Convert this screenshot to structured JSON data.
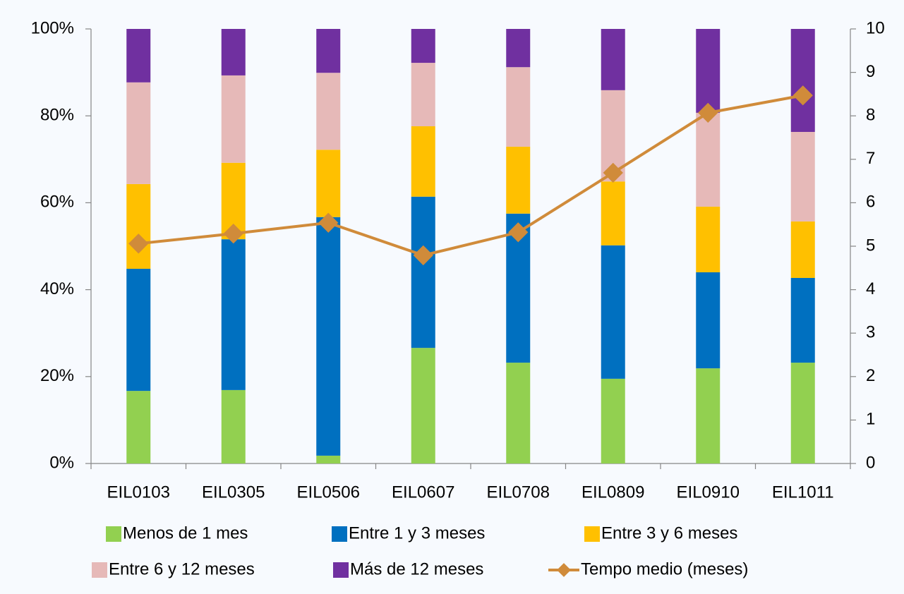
{
  "chart_data": {
    "type": "bar",
    "stacked": true,
    "categories": [
      "EIL0103",
      "EIL0305",
      "EIL0506",
      "EIL0607",
      "EIL0708",
      "EIL0809",
      "EIL0910",
      "EIL1011"
    ],
    "series": [
      {
        "name": "Menos de 1 mes",
        "color": "#92d050",
        "values": [
          16.7,
          16.9,
          1.8,
          26.6,
          23.2,
          19.5,
          21.9,
          23.2
        ]
      },
      {
        "name": "Entre 1 y 3 meses",
        "color": "#0070c0",
        "values": [
          28.1,
          34.7,
          54.9,
          34.8,
          34.3,
          30.7,
          22.1,
          19.5
        ]
      },
      {
        "name": "Entre 3 y 6 meses",
        "color": "#ffc000",
        "values": [
          19.5,
          17.6,
          15.5,
          16.2,
          15.4,
          14.7,
          15.1,
          13.0
        ]
      },
      {
        "name": "Entre 6 y 12 meses",
        "color": "#e6b9b8",
        "values": [
          23.4,
          20.1,
          17.7,
          14.6,
          18.3,
          21.0,
          21.6,
          20.6
        ]
      },
      {
        "name": "Más de 12 meses",
        "color": "#7030a0",
        "values": [
          12.3,
          10.7,
          10.1,
          7.8,
          8.8,
          14.1,
          19.3,
          23.7
        ]
      },
      {
        "name": "Tempo medio (meses)",
        "color": "#d08b3a",
        "type": "line",
        "axis": "y2",
        "values": [
          5.06,
          5.29,
          5.54,
          4.79,
          5.32,
          6.69,
          8.07,
          8.47
        ]
      }
    ],
    "ylim": [
      0,
      100
    ],
    "yticks": [
      {
        "value": 0,
        "label": "0%"
      },
      {
        "value": 20,
        "label": "20%"
      },
      {
        "value": 40,
        "label": "40%"
      },
      {
        "value": 60,
        "label": "60%"
      },
      {
        "value": 80,
        "label": "80%"
      },
      {
        "value": 100,
        "label": "100%"
      }
    ],
    "y2lim": [
      0,
      10
    ],
    "y2ticks": [
      0,
      1,
      2,
      3,
      4,
      5,
      6,
      7,
      8,
      9,
      10
    ],
    "legend": "bottom",
    "grid": false
  }
}
